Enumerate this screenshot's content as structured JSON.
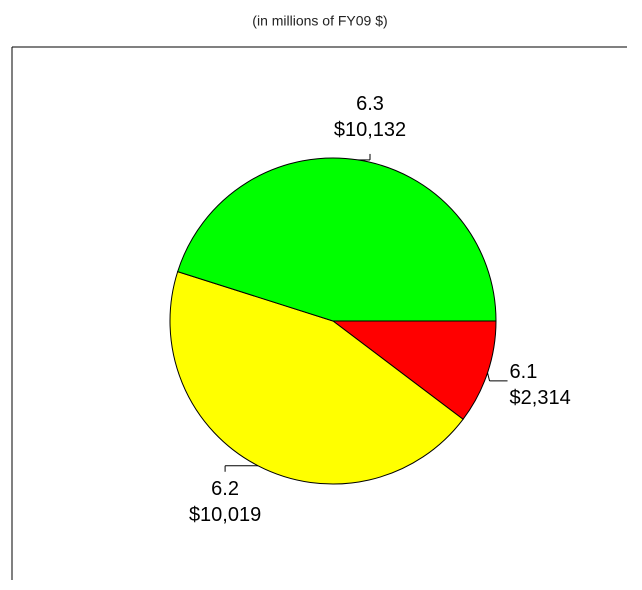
{
  "chart_data": {
    "type": "pie",
    "subtitle": "(in millions of FY09 $)",
    "categories": [
      "6.1",
      "6.2",
      "6.3"
    ],
    "values": [
      2314,
      10019,
      10132
    ],
    "value_labels": [
      "$2,314",
      "$10,019",
      "$10,132"
    ],
    "colors": [
      "#ff0000",
      "#ffff00",
      "#00ff00"
    ]
  }
}
